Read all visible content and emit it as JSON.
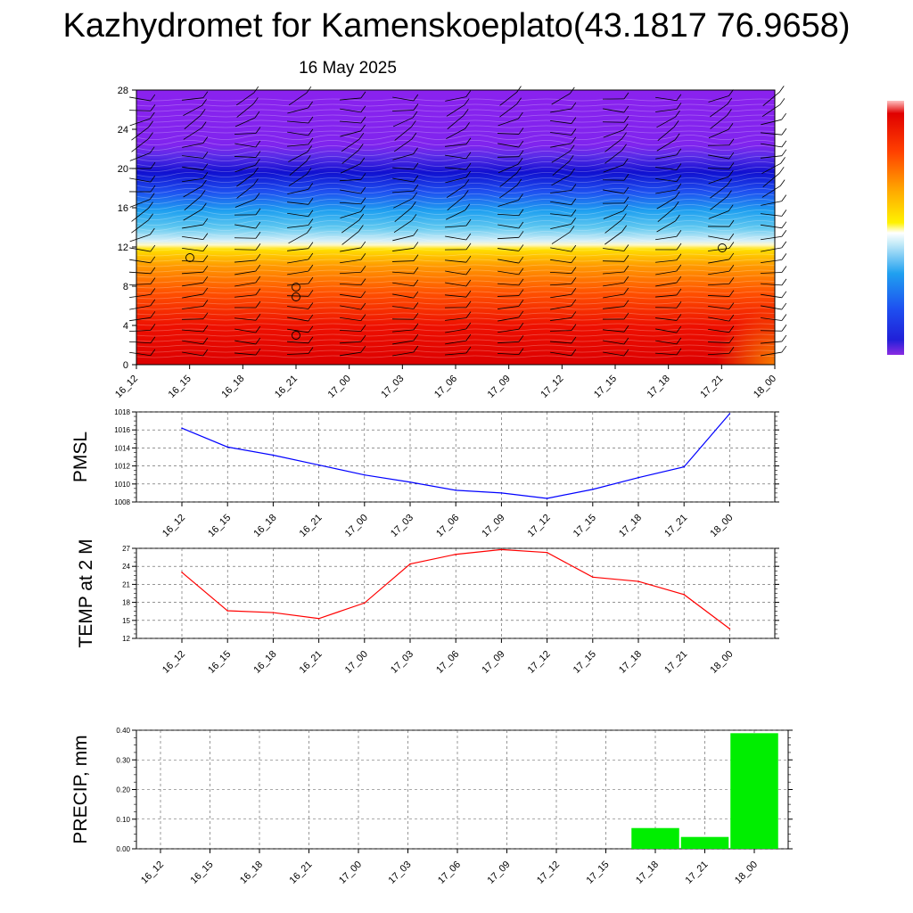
{
  "header": {
    "title": "Kazhydromet for Kamenskoeplato(43.1817 76.9658)",
    "date": "16 May 2025"
  },
  "chart_data": [
    {
      "type": "heatmap",
      "name": "vertical-cross-section",
      "x_ticks": [
        "16_12",
        "16_15",
        "16_18",
        "16_21",
        "17_00",
        "17_03",
        "17_06",
        "17_09",
        "17_12",
        "17_15",
        "17_18",
        "17_21",
        "18_00"
      ],
      "y_ticks": [
        0,
        4,
        8,
        12,
        16,
        20,
        24,
        28
      ],
      "ylim": [
        0,
        28
      ],
      "colorbar_colors": [
        "#8a2be2",
        "#6a2bee",
        "#2a2ad8",
        "#1e4ff0",
        "#1fa0f0",
        "#5fc8f0",
        "#d8f0f8",
        "#fff200",
        "#ffb000",
        "#ff7000",
        "#ff3000",
        "#e00000"
      ]
    },
    {
      "type": "line",
      "name": "pmsl",
      "ylabel": "PMSL",
      "x": [
        "16_12",
        "16_15",
        "16_18",
        "16_21",
        "17_00",
        "17_03",
        "17_06",
        "17_09",
        "17_12",
        "17_15",
        "17_18",
        "17_21",
        "18_00"
      ],
      "values": [
        1016.2,
        1014.1,
        1013.2,
        1012.1,
        1011.0,
        1010.2,
        1009.3,
        1009.0,
        1008.4,
        1009.4,
        1010.7,
        1011.9,
        1017.8
      ],
      "ylim": [
        1008,
        1018
      ],
      "y_ticks": [
        1008,
        1010,
        1012,
        1014,
        1016,
        1018
      ],
      "color": "#0000ff"
    },
    {
      "type": "line",
      "name": "temp-2m",
      "ylabel": "TEMP at 2 M",
      "x": [
        "16_12",
        "16_15",
        "16_18",
        "16_21",
        "17_00",
        "17_03",
        "17_06",
        "17_09",
        "17_12",
        "17_15",
        "17_18",
        "17_21",
        "18_00"
      ],
      "values": [
        23.0,
        16.6,
        16.3,
        15.3,
        17.9,
        24.4,
        26.0,
        26.8,
        26.3,
        22.2,
        21.5,
        19.3,
        13.6
      ],
      "ylim": [
        12,
        27
      ],
      "y_ticks": [
        12,
        15,
        18,
        21,
        24,
        27
      ],
      "color": "#ff0000"
    },
    {
      "type": "bar",
      "name": "precip",
      "ylabel": "PRECIP, mm",
      "categories": [
        "16_12",
        "16_15",
        "16_18",
        "16_21",
        "17_00",
        "17_03",
        "17_06",
        "17_09",
        "17_12",
        "17_15",
        "17_18",
        "17_21",
        "18_00"
      ],
      "values": [
        0,
        0,
        0,
        0,
        0,
        0,
        0,
        0,
        0,
        0,
        0.07,
        0.04,
        0.39
      ],
      "ylim": [
        0,
        0.4
      ],
      "y_ticks": [
        "0.00",
        "0.10",
        "0.20",
        "0.30",
        "0.40"
      ],
      "color": "#00ee00"
    }
  ]
}
